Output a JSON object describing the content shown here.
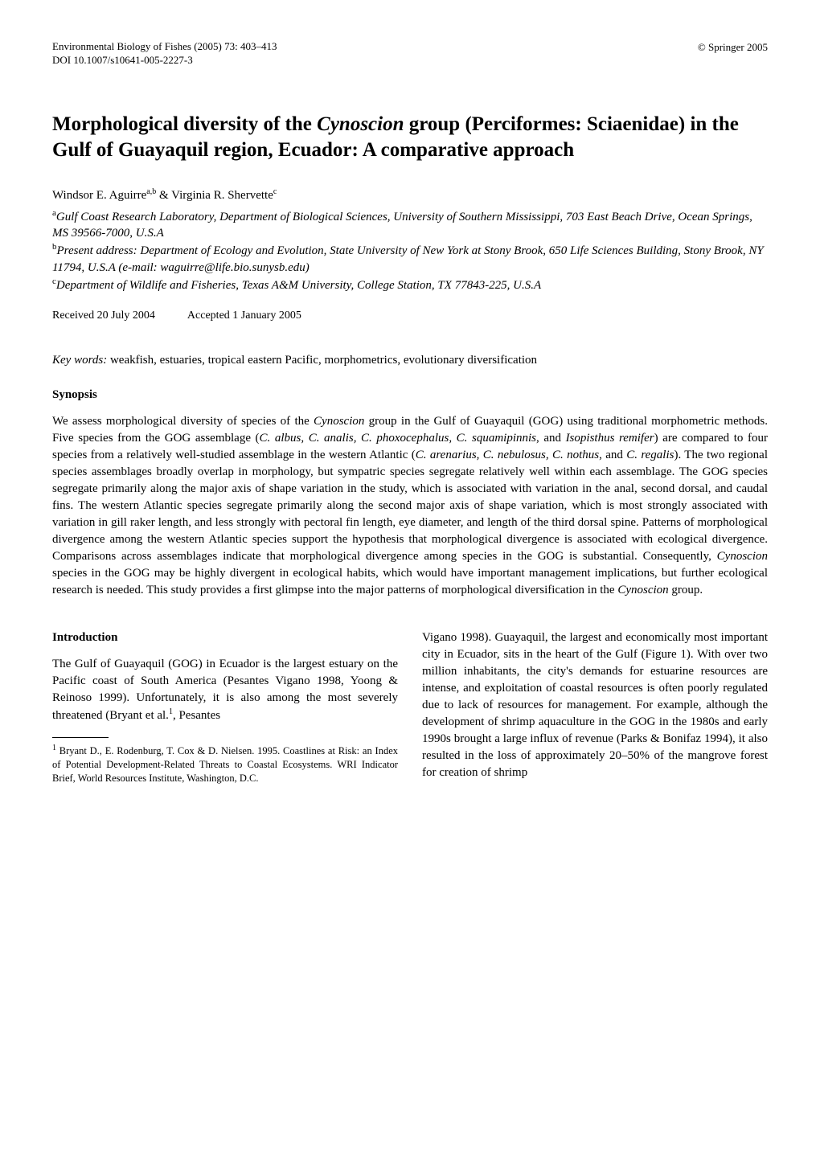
{
  "header": {
    "journal_line": "Environmental Biology of Fishes (2005) 73: 403–413",
    "doi_line": "DOI 10.1007/s10641-005-2227-3",
    "copyright": "© Springer 2005"
  },
  "article": {
    "title_pre": "Morphological diversity of the ",
    "title_genus": "Cynoscion",
    "title_post": " group (Perciformes: Sciaenidae) in the Gulf of Guayaquil region, Ecuador: A comparative approach",
    "authors_html": "Windsor E. Aguirre<sup>a,b</sup> & Virginia R. Shervette<sup>c</sup>",
    "affiliation_a": "Gulf Coast Research Laboratory, Department of Biological Sciences, University of Southern Mississippi, 703 East Beach Drive, Ocean Springs, MS 39566-7000, U.S.A",
    "affiliation_b": "Present address: Department of Ecology and Evolution, State University of New York at Stony Brook, 650 Life Sciences Building, Stony Brook, NY 11794, U.S.A (e-mail: waguirre@life.bio.sunysb.edu)",
    "affiliation_c": "Department of Wildlife and Fisheries, Texas A&M University, College Station, TX 77843-225, U.S.A",
    "received": "Received 20 July 2004",
    "accepted": "Accepted 1 January 2005",
    "keywords_label": "Key words:",
    "keywords_text": " weakfish, estuaries, tropical eastern Pacific, morphometrics, evolutionary diversification"
  },
  "synopsis": {
    "heading": "Synopsis",
    "body_parts": [
      "We assess morphological diversity of species of the ",
      "Cynoscion",
      " group in the Gulf of Guayaquil (GOG) using traditional morphometric methods. Five species from the GOG assemblage (",
      "C. albus, C. analis, C. phoxocephalus, C. squamipinnis",
      ", and ",
      "Isopisthus remifer",
      ") are compared to four species from a relatively well-studied assemblage in the western Atlantic (",
      "C. arenarius, C. nebulosus, C. nothus",
      ", and ",
      "C. regalis",
      "). The two regional species assemblages broadly overlap in morphology, but sympatric species segregate relatively well within each assemblage. The GOG species segregate primarily along the major axis of shape variation in the study, which is associated with variation in the anal, second dorsal, and caudal fins. The western Atlantic species segregate primarily along the second major axis of shape variation, which is most strongly associated with variation in gill raker length, and less strongly with pectoral fin length, eye diameter, and length of the third dorsal spine. Patterns of morphological divergence among the western Atlantic species support the hypothesis that morphological divergence is associated with ecological divergence. Comparisons across assemblages indicate that morphological divergence among species in the GOG is substantial. Consequently, ",
      "Cynoscion",
      " species in the GOG may be highly divergent in ecological habits, which would have important management implications, but further ecological research is needed. This study provides a first glimpse into the major patterns of morphological diversification in the ",
      "Cynoscion",
      " group."
    ]
  },
  "introduction": {
    "heading": "Introduction",
    "left_column": "The Gulf of Guayaquil (GOG) in Ecuador is the largest estuary on the Pacific coast of South America (Pesantes Vigano 1998, Yoong & Reinoso 1999). Unfortunately, it is also among the most severely threatened (Bryant et al.",
    "left_column_post": ", Pesantes",
    "right_column": "Vigano 1998). Guayaquil, the largest and economically most important city in Ecuador, sits in the heart of the Gulf (Figure 1). With over two million inhabitants, the city's demands for estuarine resources are intense, and exploitation of coastal resources is often poorly regulated due to lack of resources for management. For example, although the development of shrimp aquaculture in the GOG in the 1980s and early 1990s brought a large influx of revenue (Parks & Bonifaz 1994), it also resulted in the loss of approximately 20–50% of the mangrove forest for creation of shrimp"
  },
  "footnote": {
    "marker": "1",
    "text": " Bryant D., E. Rodenburg, T. Cox & D. Nielsen. 1995. Coastlines at Risk: an Index of Potential Development-Related Threats to Coastal Ecosystems. WRI Indicator Brief, World Resources Institute, Washington, D.C."
  }
}
